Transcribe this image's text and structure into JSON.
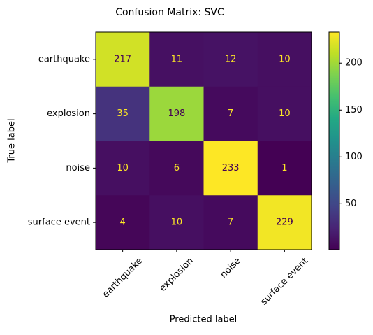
{
  "chart_data": {
    "type": "heatmap",
    "title": "Confusion Matrix: SVC",
    "x_label": "Predicted label",
    "y_label": "True label",
    "x_categories": [
      "earthquake",
      "explosion",
      "noise",
      "surface event"
    ],
    "y_categories": [
      "earthquake",
      "explosion",
      "noise",
      "surface event"
    ],
    "values": [
      [
        217,
        11,
        12,
        10
      ],
      [
        35,
        198,
        7,
        10
      ],
      [
        10,
        6,
        233,
        1
      ],
      [
        4,
        10,
        7,
        229
      ]
    ],
    "colormap": "viridis",
    "clim": [
      1,
      233
    ],
    "colorbar_ticks": [
      50,
      100,
      150,
      200
    ]
  }
}
